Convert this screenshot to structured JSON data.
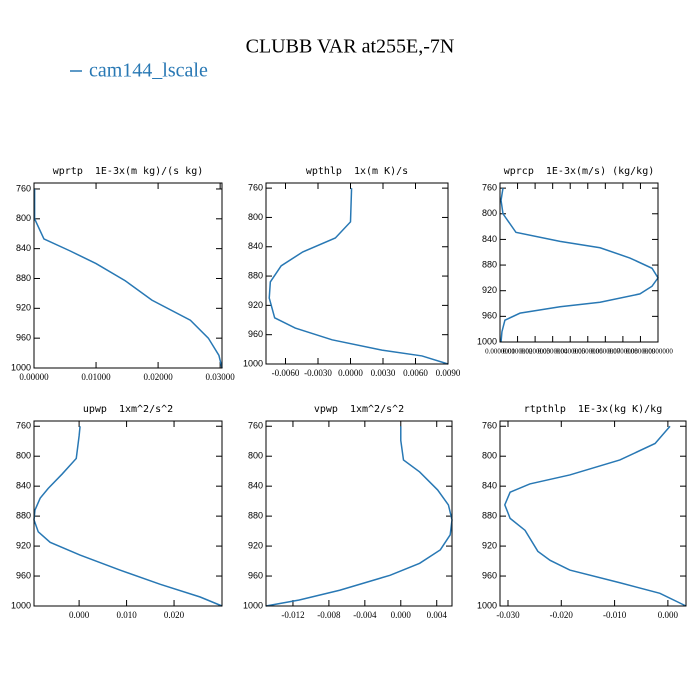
{
  "title": "CLUBB VAR at255E,-7N",
  "legend": {
    "name": "cam144_lscale",
    "color": "#2878b4"
  },
  "chart_data": [
    {
      "type": "line",
      "title": "wprtp  1E-3x(m kg)/(s kg)",
      "levels": [
        760,
        800,
        827,
        843,
        860,
        883,
        909,
        936,
        960,
        983,
        1000
      ],
      "values": [
        0.0001,
        0.0001,
        0.0016,
        0.0058,
        0.01,
        0.0147,
        0.019,
        0.0252,
        0.0281,
        0.0298,
        0.0303
      ],
      "xlim": [
        0,
        0.0303
      ],
      "ylim": [
        1000,
        752
      ],
      "xticks": [
        {
          "value": 0,
          "label": "0.00000"
        },
        {
          "value": 0.01,
          "label": "0.01000"
        },
        {
          "value": 0.02,
          "label": "0.02000"
        },
        {
          "value": 0.03,
          "label": "0.03000"
        }
      ],
      "yticks": [
        760,
        800,
        840,
        880,
        920,
        960,
        1000
      ]
    },
    {
      "type": "line",
      "title": "wpthlp  1x(m K)/s",
      "levels": [
        760,
        806,
        828,
        847,
        866,
        888,
        910,
        937,
        951,
        967,
        981,
        989,
        1000
      ],
      "values": [
        0.0001,
        0,
        -0.0014,
        -0.0044,
        -0.0064,
        -0.0074,
        -0.0075,
        -0.007,
        -0.0051,
        -0.0017,
        0.0029,
        0.0066,
        0.009
      ],
      "xlim": [
        -0.0078,
        0.009
      ],
      "ylim": [
        1000,
        753
      ],
      "xticks": [
        {
          "value": -0.006,
          "label": "-0.0060"
        },
        {
          "value": -0.003,
          "label": "-0.0030"
        },
        {
          "value": 0,
          "label": "0.0000"
        },
        {
          "value": 0.003,
          "label": "0.0030"
        },
        {
          "value": 0.006,
          "label": "0.0060"
        },
        {
          "value": 0.009,
          "label": "0.0090"
        }
      ],
      "yticks": [
        760,
        800,
        840,
        880,
        920,
        960,
        1000
      ]
    },
    {
      "type": "line",
      "title": "wprcp  1E-3x(m/s) (kg/kg)",
      "levels": [
        760,
        779,
        800,
        829,
        843,
        853,
        869,
        885,
        900,
        913,
        925,
        938,
        945,
        955,
        966,
        984,
        1000
      ],
      "values": [
        0.0017,
        0.0006,
        0.0017,
        0.0091,
        0.0342,
        0.057,
        0.074,
        0.0866,
        0.09,
        0.0866,
        0.0797,
        0.057,
        0.0342,
        0.0114,
        0.0028,
        0.0011,
        0.0006
      ],
      "xlim": [
        0,
        0.09
      ],
      "ylim": [
        1000,
        752
      ],
      "xticks": [
        {
          "value": 0,
          "label": "0.0000000"
        },
        {
          "value": 0.01,
          "label": "0.0100000"
        },
        {
          "value": 0.02,
          "label": "0.0200000"
        },
        {
          "value": 0.03,
          "label": "0.0300000"
        },
        {
          "value": 0.04,
          "label": "0.0400000"
        },
        {
          "value": 0.05,
          "label": "0.0500000"
        },
        {
          "value": 0.06,
          "label": "0.0600000"
        },
        {
          "value": 0.07,
          "label": "0.0700000"
        },
        {
          "value": 0.08,
          "label": "0.0800000"
        },
        {
          "value": 0.09,
          "label": "0.0900000"
        }
      ],
      "yticks": [
        760,
        800,
        840,
        880,
        920,
        960,
        1000
      ]
    },
    {
      "type": "line",
      "title": "upwp  1xm^2/s^2",
      "levels": [
        760,
        773,
        803,
        824,
        843,
        856,
        872,
        885,
        901,
        915,
        932,
        952,
        971,
        988,
        1000
      ],
      "values": [
        0.0002,
        0,
        -0.0006,
        -0.0036,
        -0.0065,
        -0.0082,
        -0.0093,
        -0.0095,
        -0.0086,
        -0.0061,
        0.0002,
        0.0086,
        0.0171,
        0.0255,
        0.0301
      ],
      "xlim": [
        -0.0095,
        0.0301
      ],
      "ylim": [
        1000,
        753
      ],
      "xticks": [
        {
          "value": 0,
          "label": "0.000"
        },
        {
          "value": 0.01,
          "label": "0.010"
        },
        {
          "value": 0.02,
          "label": "0.020"
        }
      ],
      "yticks": [
        760,
        800,
        840,
        880,
        920,
        960,
        1000
      ]
    },
    {
      "type": "line",
      "title": "vpwp  1xm^2/s^2",
      "levels": [
        760,
        779,
        805,
        821,
        845,
        865,
        885,
        905,
        925,
        943,
        959,
        979,
        992,
        1000
      ],
      "values": [
        0,
        0,
        0.0003,
        0.0021,
        0.0041,
        0.0053,
        0.0057,
        0.0055,
        0.0044,
        0.0021,
        -0.0012,
        -0.0068,
        -0.0113,
        -0.015
      ],
      "xlim": [
        -0.015,
        0.0057
      ],
      "ylim": [
        1000,
        753
      ],
      "xticks": [
        -0.012,
        -0.008,
        -0.004,
        {
          "value": 0,
          "label": "0.000"
        },
        0.004
      ],
      "yticks": [
        760,
        800,
        840,
        880,
        920,
        960,
        1000
      ]
    },
    {
      "type": "line",
      "title": "rtpthlp  1E-3x(kg K)/kg",
      "levels": [
        760,
        783,
        805,
        825,
        837,
        848,
        865,
        883,
        899,
        927,
        939,
        952,
        969,
        983,
        1000
      ],
      "values": [
        0.0004,
        -0.0024,
        -0.009,
        -0.0184,
        -0.0259,
        -0.0296,
        -0.0306,
        -0.0296,
        -0.0268,
        -0.0244,
        -0.0221,
        -0.0184,
        -0.009,
        -0.0015,
        0.0034
      ],
      "xlim": [
        -0.0315,
        0.0034
      ],
      "ylim": [
        1000,
        753
      ],
      "xticks": [
        {
          "value": -0.03,
          "label": "-0.030"
        },
        {
          "value": -0.02,
          "label": "-0.020"
        },
        {
          "value": -0.01,
          "label": "-0.010"
        },
        {
          "value": 0,
          "label": "0.000"
        }
      ],
      "yticks": [
        760,
        800,
        840,
        880,
        920,
        960,
        1000
      ]
    }
  ]
}
